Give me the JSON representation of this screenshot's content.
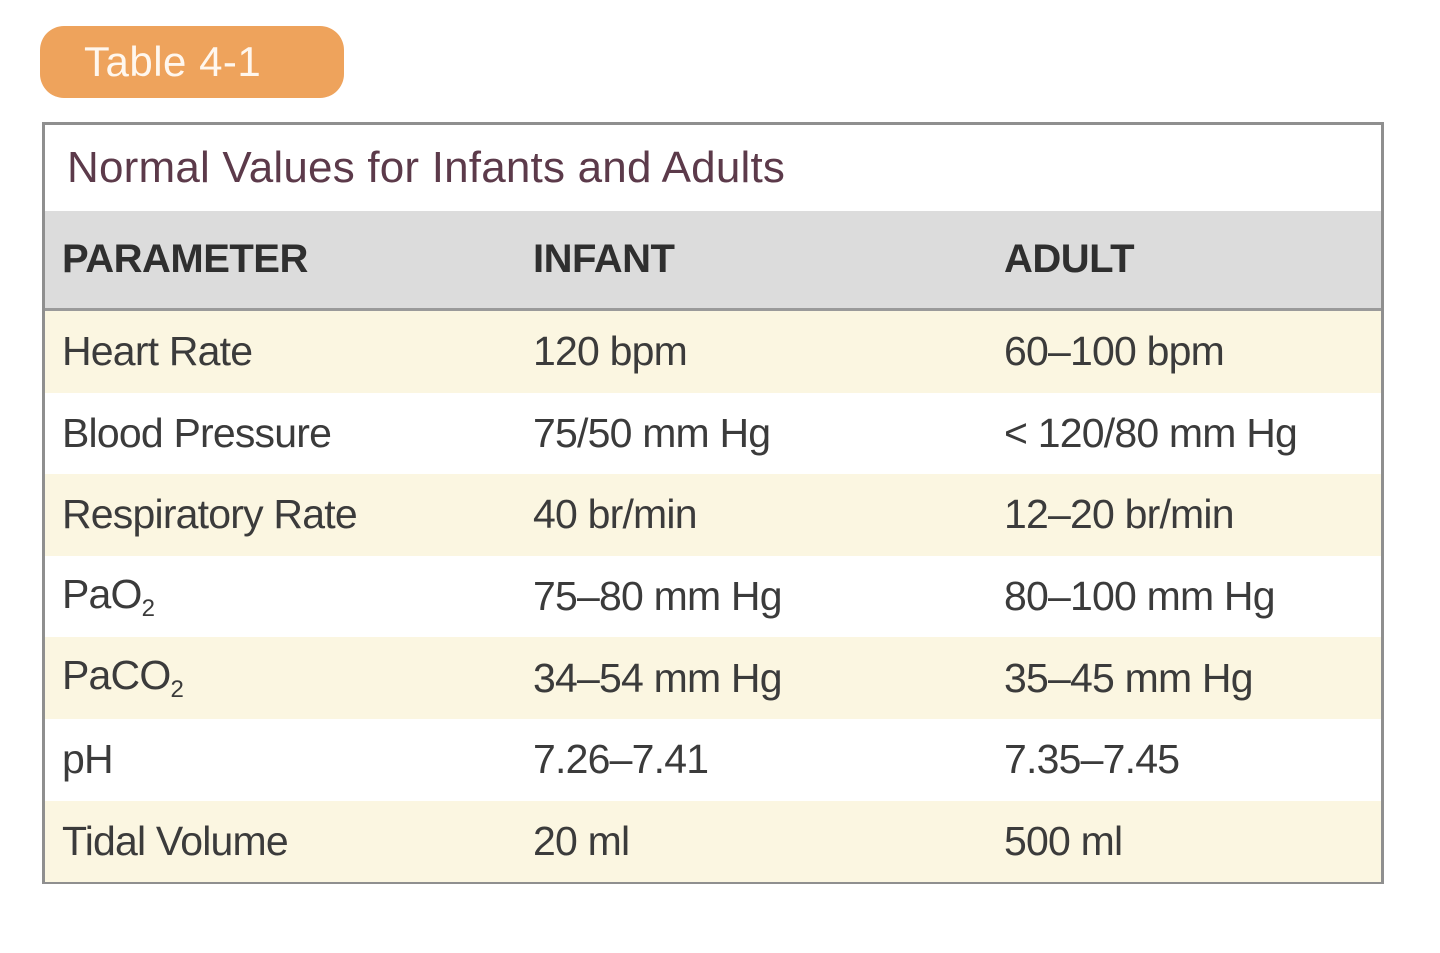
{
  "tag_label": "Table 4-1",
  "caption": "Normal Values for Infants and Adults",
  "headers": [
    "PARAMETER",
    "INFANT",
    "ADULT"
  ],
  "rows": [
    {
      "parameter": "Heart Rate",
      "infant": "120 bpm",
      "adult": "60–100 bpm"
    },
    {
      "parameter": "Blood Pressure",
      "infant": "75/50 mm Hg",
      "adult": "< 120/80 mm Hg"
    },
    {
      "parameter": "Respiratory Rate",
      "infant": "40 br/min",
      "adult": "12–20 br/min"
    },
    {
      "parameter": "PaO",
      "parameter_sub": "2",
      "infant": "75–80 mm Hg",
      "adult": "80–100 mm Hg"
    },
    {
      "parameter": "PaCO",
      "parameter_sub": "2",
      "infant": "34–54 mm Hg",
      "adult": "35–45 mm Hg"
    },
    {
      "parameter": "pH",
      "infant": "7.26–7.41",
      "adult": "7.35–7.45"
    },
    {
      "parameter": "Tidal Volume",
      "infant": "20 ml",
      "adult": "500 ml"
    }
  ],
  "colors": {
    "tag_bg": "#eea35c",
    "header_bg": "#dcdcdc",
    "stripe_bg": "#fbf6e1",
    "caption_text": "#5c3a4a"
  }
}
